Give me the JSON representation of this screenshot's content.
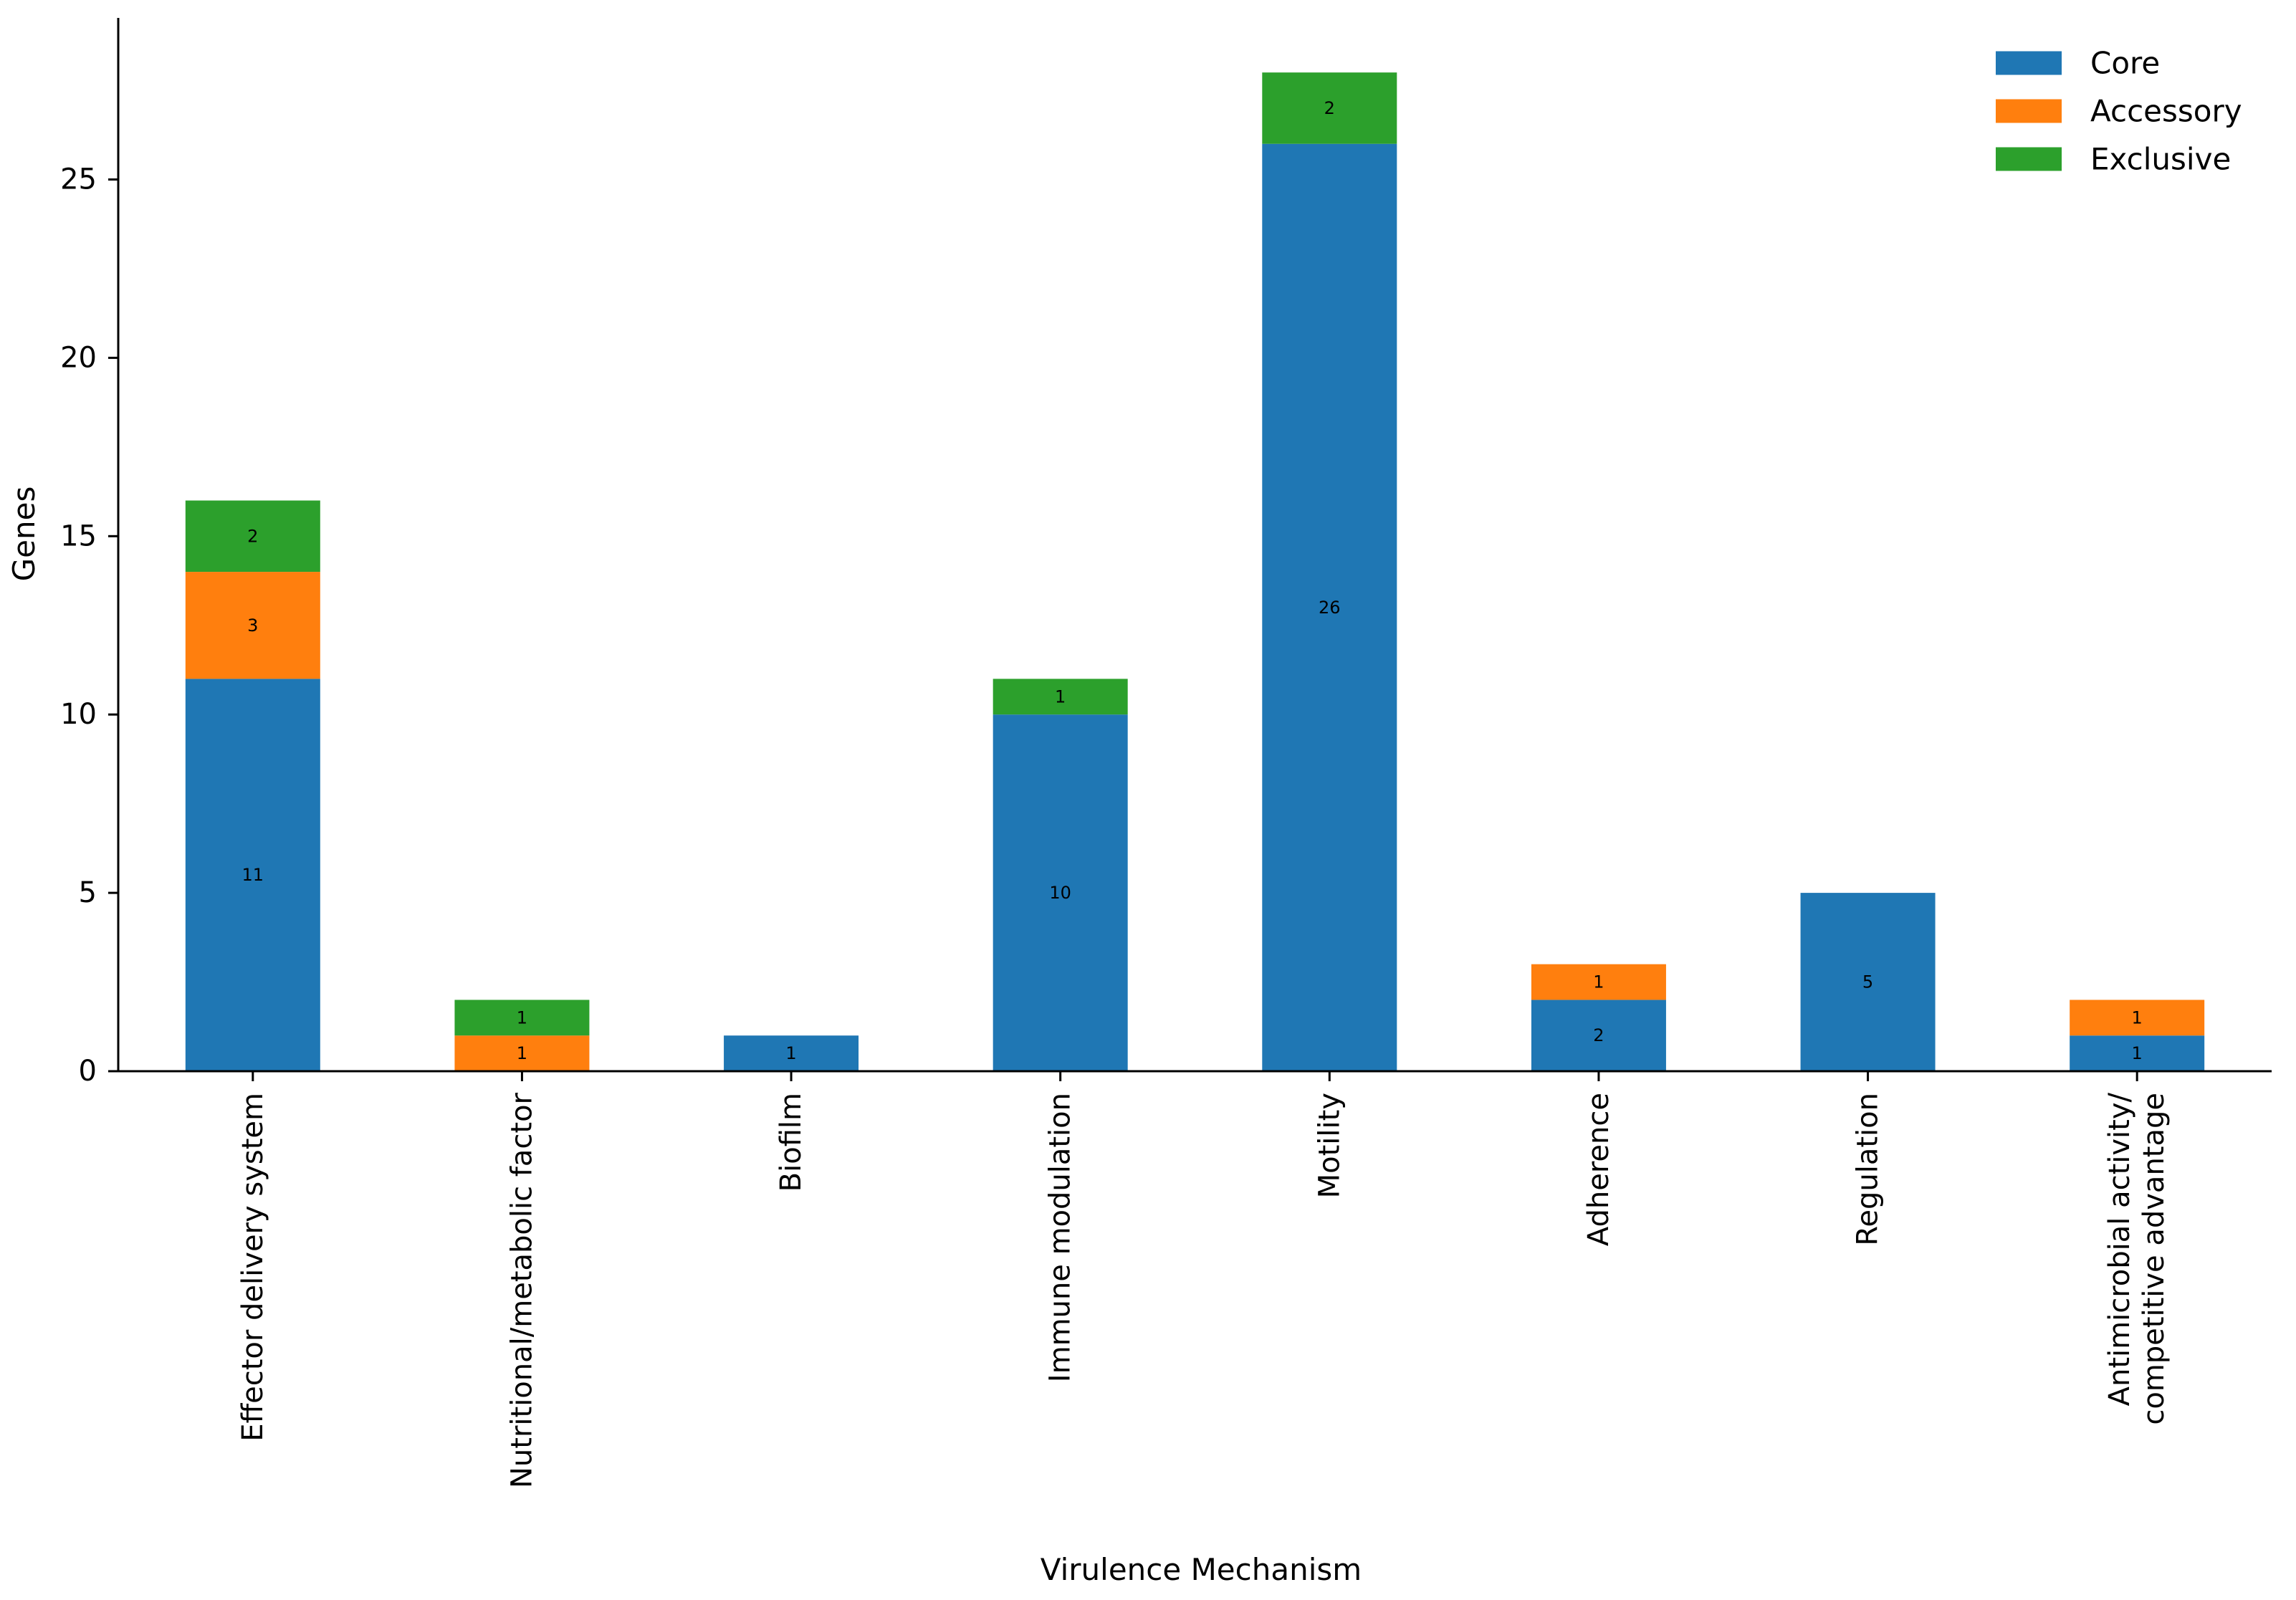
{
  "chart_data": {
    "type": "bar",
    "stacked": true,
    "title": "",
    "xlabel": "Virulence Mechanism",
    "ylabel": "Genes",
    "ylim": [
      0,
      29.5
    ],
    "yticks": [
      0,
      5,
      10,
      15,
      20,
      25
    ],
    "grid": false,
    "legend_position": "top-right",
    "categories": [
      [
        "Effector delivery system"
      ],
      [
        "Nutritional/metabolic factor"
      ],
      [
        "Biofilm"
      ],
      [
        "Immune modulation"
      ],
      [
        "Motility"
      ],
      [
        "Adherence"
      ],
      [
        "Regulation"
      ],
      [
        "Antimicrobial activity/",
        "competitive advantage"
      ]
    ],
    "series": [
      {
        "name": "Core",
        "color": "#1f77b4",
        "values": [
          11,
          0,
          1,
          10,
          26,
          2,
          5,
          1
        ]
      },
      {
        "name": "Accessory",
        "color": "#ff7f0e",
        "values": [
          3,
          1,
          0,
          0,
          0,
          1,
          0,
          1
        ]
      },
      {
        "name": "Exclusive",
        "color": "#2ca02c",
        "values": [
          2,
          1,
          0,
          1,
          2,
          0,
          0,
          0
        ]
      }
    ]
  }
}
